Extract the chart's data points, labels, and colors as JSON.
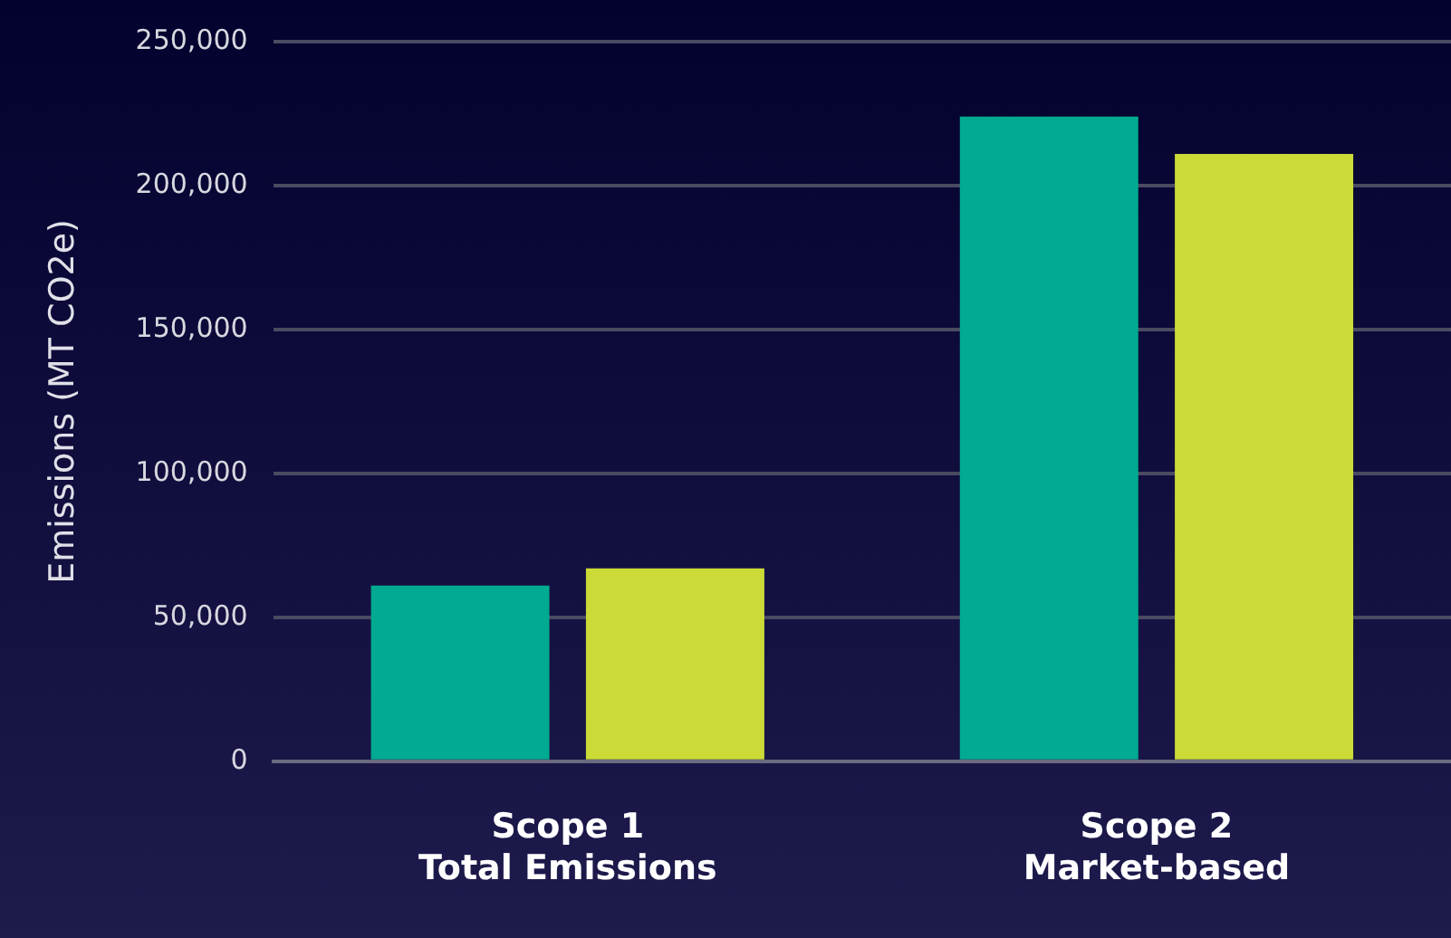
{
  "chart_data": {
    "type": "bar",
    "ylabel": "Emissions (MT CO2e)",
    "categories": [
      "Scope 1\nTotal Emissions",
      "Scope 2\nMarket-based"
    ],
    "series": [
      {
        "color": "#00ab91",
        "values": [
          61000,
          224000
        ]
      },
      {
        "color": "#cbda37",
        "values": [
          67000,
          211000
        ]
      }
    ],
    "ylim": [
      0,
      250000
    ],
    "yticks": [
      {
        "value": 0,
        "label": "0"
      },
      {
        "value": 50000,
        "label": "50,000"
      },
      {
        "value": 100000,
        "label": "100,000"
      },
      {
        "value": 150000,
        "label": "150,000"
      },
      {
        "value": 200000,
        "label": "200,000"
      },
      {
        "value": 250000,
        "label": "250,000"
      }
    ],
    "grid": "y",
    "legend": false
  }
}
